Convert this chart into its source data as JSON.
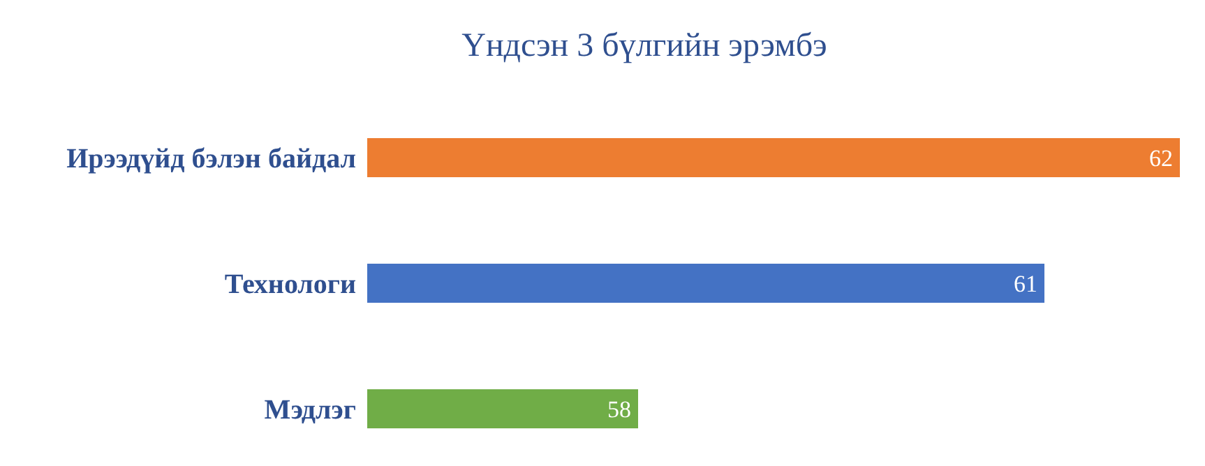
{
  "chart_data": {
    "type": "bar",
    "orientation": "horizontal",
    "title": "Үндсэн 3 бүлгийн эрэмбэ",
    "categories": [
      "Ирээдүйд бэлэн байдал",
      "Технологи",
      "Мэдлэг"
    ],
    "values": [
      62,
      61,
      58
    ],
    "colors": [
      "#ed7d31",
      "#4472c4",
      "#70ad47"
    ],
    "xlim": [
      56,
      62
    ],
    "data_labels": true,
    "tick_labels": "y"
  }
}
